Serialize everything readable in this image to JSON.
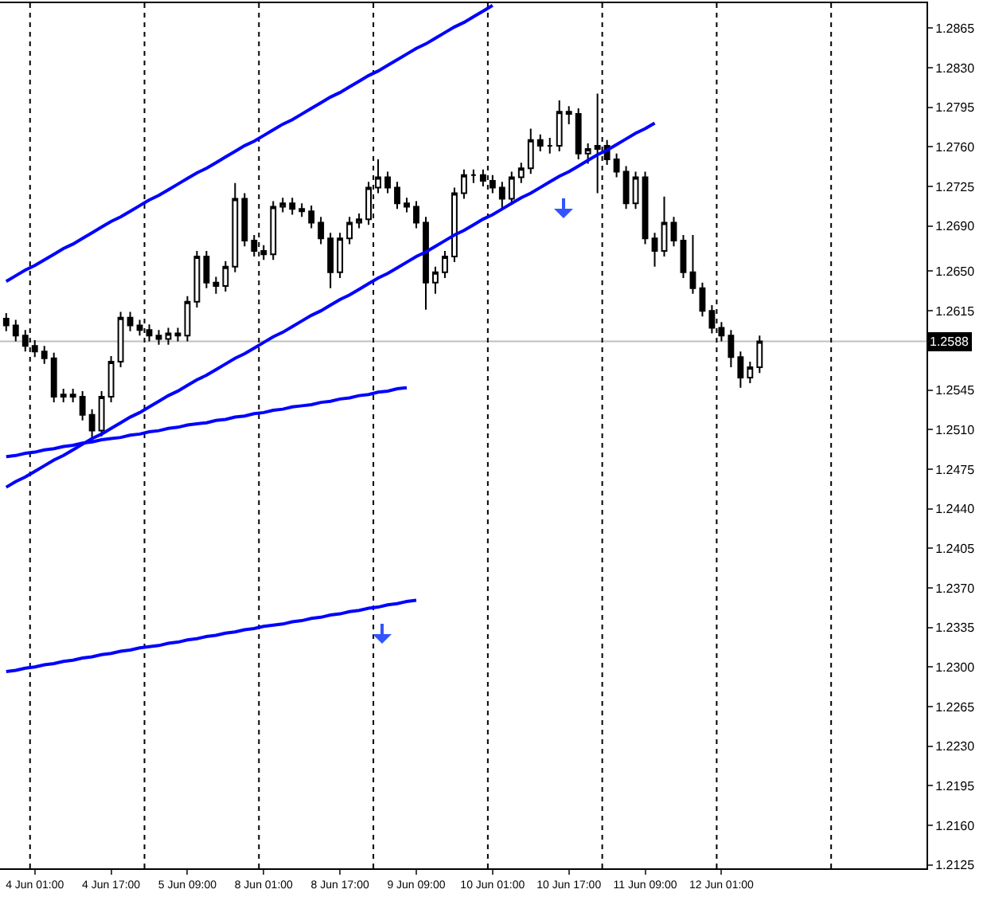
{
  "chart_data": {
    "type": "candlestick",
    "categories": [
      null,
      null,
      null,
      "4 Jun 01:00",
      null,
      null,
      null,
      null,
      null,
      null,
      null,
      "4 Jun 17:00",
      null,
      null,
      null,
      null,
      null,
      null,
      null,
      "5 Jun 09:00",
      null,
      null,
      null,
      null,
      null,
      null,
      null,
      "8 Jun 01:00",
      null,
      null,
      null,
      null,
      null,
      null,
      null,
      "8 Jun 17:00",
      null,
      null,
      null,
      null,
      null,
      null,
      null,
      "9 Jun 09:00",
      null,
      null,
      null,
      null,
      null,
      null,
      null,
      "10 Jun 01:00",
      null,
      null,
      null,
      null,
      null,
      null,
      null,
      "10 Jun 17:00",
      null,
      null,
      null,
      null,
      null,
      null,
      null,
      "11 Jun 09:00",
      null,
      null,
      null,
      null,
      null,
      null,
      null,
      "12 Jun 01:00",
      null,
      null,
      null,
      null
    ],
    "ohlc": [
      [
        1.2608,
        1.2613,
        1.2597,
        1.2602
      ],
      [
        1.2602,
        1.2607,
        1.2588,
        1.2593
      ],
      [
        1.2593,
        1.2598,
        1.2579,
        1.2584
      ],
      [
        1.2584,
        1.2589,
        1.2574,
        1.2579
      ],
      [
        1.2579,
        1.2584,
        1.2568,
        1.2573
      ],
      [
        1.2573,
        1.2578,
        1.2534,
        1.2539
      ],
      [
        1.2539,
        1.2546,
        1.2534,
        1.2541
      ],
      [
        1.2541,
        1.2546,
        1.2534,
        1.2539
      ],
      [
        1.2539,
        1.2544,
        1.2518,
        1.2523
      ],
      [
        1.2523,
        1.2528,
        1.25,
        1.2509
      ],
      [
        1.2509,
        1.2544,
        1.2504,
        1.2539
      ],
      [
        1.2539,
        1.2575,
        1.2534,
        1.257
      ],
      [
        1.257,
        1.2614,
        1.2565,
        1.2609
      ],
      [
        1.2609,
        1.2614,
        1.2597,
        1.2602
      ],
      [
        1.2602,
        1.2607,
        1.2593,
        1.2598
      ],
      [
        1.2598,
        1.2603,
        1.2588,
        1.2593
      ],
      [
        1.2593,
        1.2598,
        1.2585,
        1.259
      ],
      [
        1.259,
        1.26,
        1.2585,
        1.2595
      ],
      [
        1.2595,
        1.26,
        1.2588,
        1.2593
      ],
      [
        1.2593,
        1.2628,
        1.2588,
        1.2623
      ],
      [
        1.2623,
        1.2668,
        1.2618,
        1.2663
      ],
      [
        1.2663,
        1.2668,
        1.2635,
        1.264
      ],
      [
        1.264,
        1.2645,
        1.263,
        1.2637
      ],
      [
        1.2637,
        1.2659,
        1.2632,
        1.2654
      ],
      [
        1.2654,
        1.2728,
        1.2649,
        1.2714
      ],
      [
        1.2714,
        1.2719,
        1.2672,
        1.2677
      ],
      [
        1.2677,
        1.2682,
        1.2663,
        1.2668
      ],
      [
        1.2668,
        1.2673,
        1.266,
        1.2665
      ],
      [
        1.2665,
        1.2712,
        1.266,
        1.2707
      ],
      [
        1.2707,
        1.2715,
        1.2702,
        1.271
      ],
      [
        1.271,
        1.2715,
        1.27,
        1.2705
      ],
      [
        1.2705,
        1.271,
        1.2698,
        1.2703
      ],
      [
        1.2703,
        1.2708,
        1.2688,
        1.2693
      ],
      [
        1.2693,
        1.2698,
        1.2674,
        1.2679
      ],
      [
        1.2679,
        1.2684,
        1.2635,
        1.2649
      ],
      [
        1.2649,
        1.2684,
        1.2644,
        1.2679
      ],
      [
        1.2679,
        1.2698,
        1.2674,
        1.2693
      ],
      [
        1.2693,
        1.2701,
        1.2688,
        1.2696
      ],
      [
        1.2696,
        1.2729,
        1.2691,
        1.2724
      ],
      [
        1.2724,
        1.2749,
        1.2719,
        1.2733
      ],
      [
        1.2733,
        1.2738,
        1.2719,
        1.2724
      ],
      [
        1.2724,
        1.2729,
        1.2705,
        1.271
      ],
      [
        1.271,
        1.2715,
        1.2702,
        1.2707
      ],
      [
        1.2707,
        1.2712,
        1.2688,
        1.2693
      ],
      [
        1.2693,
        1.2698,
        1.2616,
        1.264
      ],
      [
        1.264,
        1.2654,
        1.263,
        1.2649
      ],
      [
        1.2649,
        1.2668,
        1.2644,
        1.2663
      ],
      [
        1.2663,
        1.2724,
        1.2658,
        1.2719
      ],
      [
        1.2719,
        1.274,
        1.2714,
        1.2735
      ],
      [
        1.2735,
        1.274,
        1.2728,
        1.2735
      ],
      [
        1.2735,
        1.274,
        1.2725,
        1.273
      ],
      [
        1.273,
        1.2735,
        1.2719,
        1.2724
      ],
      [
        1.2724,
        1.2729,
        1.2705,
        1.2714
      ],
      [
        1.2714,
        1.2738,
        1.2709,
        1.2733
      ],
      [
        1.2733,
        1.2746,
        1.2728,
        1.2741
      ],
      [
        1.2741,
        1.2776,
        1.2736,
        1.2766
      ],
      [
        1.2766,
        1.2771,
        1.2756,
        1.2761
      ],
      [
        1.2761,
        1.2768,
        1.2754,
        1.2761
      ],
      [
        1.2761,
        1.2801,
        1.2756,
        1.2791
      ],
      [
        1.2791,
        1.2796,
        1.278,
        1.2789
      ],
      [
        1.2789,
        1.2794,
        1.2749,
        1.2754
      ],
      [
        1.2754,
        1.2763,
        1.2745,
        1.2758
      ],
      [
        1.2758,
        1.2807,
        1.2719,
        1.2761
      ],
      [
        1.2761,
        1.2766,
        1.2744,
        1.2749
      ],
      [
        1.2749,
        1.2754,
        1.2733,
        1.2738
      ],
      [
        1.2738,
        1.2743,
        1.2705,
        1.271
      ],
      [
        1.271,
        1.2738,
        1.2705,
        1.2733
      ],
      [
        1.2733,
        1.2738,
        1.2674,
        1.2679
      ],
      [
        1.2679,
        1.2684,
        1.2654,
        1.2668
      ],
      [
        1.2668,
        1.2716,
        1.2663,
        1.2693
      ],
      [
        1.2693,
        1.2698,
        1.2672,
        1.2677
      ],
      [
        1.2677,
        1.2682,
        1.2644,
        1.2649
      ],
      [
        1.2649,
        1.2682,
        1.263,
        1.2635
      ],
      [
        1.2635,
        1.264,
        1.261,
        1.2615
      ],
      [
        1.2615,
        1.262,
        1.2595,
        1.26
      ],
      [
        1.26,
        1.2605,
        1.2588,
        1.2593
      ],
      [
        1.2593,
        1.2598,
        1.2565,
        1.2574
      ],
      [
        1.2574,
        1.2579,
        1.2547,
        1.2556
      ],
      [
        1.2556,
        1.257,
        1.2551,
        1.2565
      ],
      [
        1.2565,
        1.2593,
        1.256,
        1.2588
      ]
    ],
    "series": [
      {
        "type": "line",
        "color": "#0000ff",
        "values": [
          1.2641,
          1.2646,
          1.2651,
          1.2655,
          1.266,
          1.2665,
          1.267,
          1.2674,
          1.2679,
          1.2684,
          1.2689,
          1.2694,
          1.2698,
          1.2703,
          1.2708,
          1.2713,
          1.2717,
          1.2722,
          1.2727,
          1.2732,
          1.2737,
          1.2741,
          1.2746,
          1.2751,
          1.2756,
          1.2761,
          1.2765,
          1.277,
          1.2775,
          1.278,
          1.2784,
          1.2789,
          1.2794,
          1.2799,
          1.2804,
          1.2808,
          1.2813,
          1.2818,
          1.2823,
          1.2827,
          1.2832,
          1.2837,
          1.2842,
          1.2847,
          1.2851,
          1.2856,
          1.2861,
          1.2866,
          1.287,
          1.2875,
          1.288,
          1.2885,
          null,
          null,
          null,
          null,
          null,
          null,
          null,
          null,
          null,
          null,
          null,
          null,
          null,
          null,
          null,
          null,
          null,
          null,
          null,
          null,
          null,
          null,
          null,
          null,
          null,
          null,
          null,
          null
        ]
      },
      {
        "type": "line",
        "color": "#0000ff",
        "values": [
          1.2459,
          1.2464,
          1.2468,
          1.2473,
          1.2478,
          1.2483,
          1.2487,
          1.2492,
          1.2497,
          1.2502,
          1.2506,
          1.2511,
          1.2516,
          1.2521,
          1.2525,
          1.253,
          1.2535,
          1.254,
          1.2544,
          1.2549,
          1.2554,
          1.2558,
          1.2563,
          1.2568,
          1.2573,
          1.2577,
          1.2582,
          1.2587,
          1.2592,
          1.2596,
          1.2601,
          1.2606,
          1.2611,
          1.2615,
          1.262,
          1.2625,
          1.2629,
          1.2634,
          1.2639,
          1.2644,
          1.2648,
          1.2653,
          1.2658,
          1.2663,
          1.2667,
          1.2672,
          1.2677,
          1.2682,
          1.2686,
          1.2691,
          1.2696,
          1.27,
          1.2705,
          1.271,
          1.2715,
          1.2719,
          1.2724,
          1.2729,
          1.2734,
          1.2738,
          1.2743,
          1.2748,
          1.2753,
          1.2757,
          1.2762,
          1.2767,
          1.2772,
          1.2776,
          1.2781,
          null,
          null,
          null,
          null,
          null,
          null,
          null,
          null,
          null,
          null,
          null
        ]
      },
      {
        "type": "line",
        "color": "#0000ff",
        "values": [
          1.2486,
          1.2487,
          1.2489,
          1.249,
          1.2492,
          1.2493,
          1.2495,
          1.2496,
          1.2498,
          1.2499,
          1.2501,
          1.2502,
          1.2503,
          1.2505,
          1.2506,
          1.2508,
          1.2509,
          1.2511,
          1.2512,
          1.2514,
          1.2515,
          1.2516,
          1.2518,
          1.2519,
          1.2521,
          1.2522,
          1.2524,
          1.2525,
          1.2527,
          1.2528,
          1.253,
          1.2531,
          1.2532,
          1.2534,
          1.2535,
          1.2537,
          1.2538,
          1.254,
          1.2541,
          1.2543,
          1.2544,
          1.2546,
          1.2547,
          null,
          null,
          null,
          null,
          null,
          null,
          null,
          null,
          null,
          null,
          null,
          null,
          null,
          null,
          null,
          null,
          null,
          null,
          null,
          null,
          null,
          null,
          null,
          null,
          null,
          null,
          null,
          null,
          null,
          null,
          null,
          null,
          null,
          null,
          null,
          null,
          null
        ]
      },
      {
        "type": "line",
        "color": "#0000ff",
        "values": [
          1.2296,
          1.2297,
          1.2299,
          1.23,
          1.2302,
          1.2303,
          1.2305,
          1.2306,
          1.2308,
          1.2309,
          1.2311,
          1.2312,
          1.2314,
          1.2315,
          1.2317,
          1.2318,
          1.2319,
          1.2321,
          1.2322,
          1.2324,
          1.2325,
          1.2327,
          1.2328,
          1.233,
          1.2331,
          1.2333,
          1.2334,
          1.2336,
          1.2337,
          1.2338,
          1.234,
          1.2341,
          1.2343,
          1.2344,
          1.2346,
          1.2347,
          1.2349,
          1.235,
          1.2352,
          1.2353,
          1.2355,
          1.2356,
          1.2358,
          1.2359,
          null,
          null,
          null,
          null,
          null,
          null,
          null,
          null,
          null,
          null,
          null,
          null,
          null,
          null,
          null,
          null,
          null,
          null,
          null,
          null,
          null,
          null,
          null,
          null,
          null,
          null,
          null,
          null,
          null,
          null,
          null,
          null,
          null,
          null,
          null,
          null
        ]
      }
    ],
    "ylim": [
      1.2122,
      1.2887
    ],
    "yticks": [
      1.2125,
      {
        "value": 1.216,
        "label": "1.2160"
      },
      1.2195,
      {
        "value": 1.223,
        "label": "1.2230"
      },
      1.2265,
      {
        "value": 1.23,
        "label": "1.2300"
      },
      1.2335,
      {
        "value": 1.237,
        "label": "1.2370"
      },
      1.2405,
      {
        "value": 1.244,
        "label": "1.2440"
      },
      1.2475,
      {
        "value": 1.251,
        "label": "1.2510"
      },
      1.2545,
      1.2615,
      {
        "value": 1.265,
        "label": "1.2650"
      },
      {
        "value": 1.269,
        "label": "1.2690"
      },
      1.2725,
      {
        "value": 1.276,
        "label": "1.2760"
      },
      1.2795,
      {
        "value": 1.283,
        "label": "1.2830"
      },
      1.2865
    ],
    "ref_lines": [
      {
        "axis": "y",
        "value": 1.2588,
        "label": "1.2588",
        "color": "#c0c0c0",
        "line_style": "solid"
      }
    ],
    "grid": false
  }
}
